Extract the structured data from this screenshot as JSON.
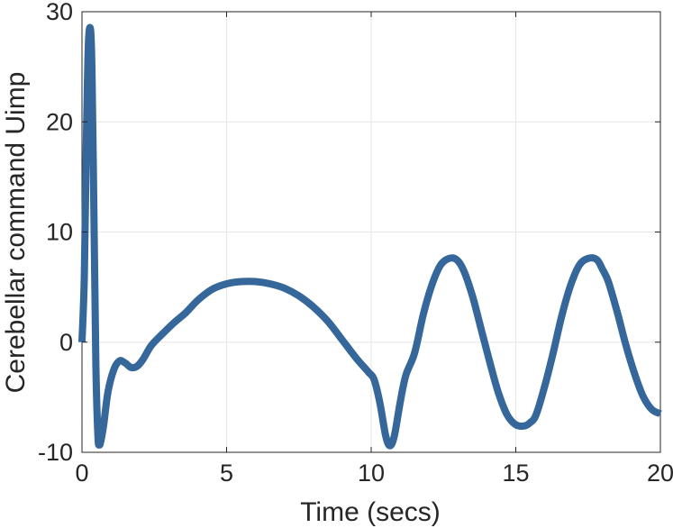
{
  "chart_data": {
    "type": "line",
    "title": "",
    "xlabel": "Time (secs)",
    "ylabel": "Cerebellar command Uimp",
    "xlim": [
      0,
      20
    ],
    "ylim": [
      -10,
      30
    ],
    "xticks": [
      0,
      5,
      10,
      15,
      20
    ],
    "yticks": [
      -10,
      0,
      10,
      20,
      30
    ],
    "xtick_labels": [
      "0",
      "5",
      "10",
      "15",
      "20"
    ],
    "ytick_labels": [
      "-10",
      "0",
      "10",
      "20",
      "30"
    ],
    "grid": true,
    "legend": "none",
    "series": [
      {
        "color": "#35679A",
        "x": [
          0,
          0.08,
          0.15,
          0.22,
          0.3,
          0.35,
          0.42,
          0.48,
          0.55,
          0.6,
          0.65,
          0.75,
          0.9,
          1.1,
          1.3,
          1.5,
          1.7,
          1.9,
          2.1,
          2.4,
          2.8,
          3.2,
          3.6,
          4.0,
          4.5,
          5.0,
          5.5,
          6.0,
          6.5,
          7.0,
          7.5,
          8.0,
          8.5,
          9.0,
          9.5,
          9.9,
          10.1,
          10.3,
          10.5,
          10.65,
          10.8,
          11.0,
          11.2,
          11.5,
          11.8,
          12.1,
          12.4,
          12.7,
          12.95,
          13.2,
          13.5,
          13.8,
          14.1,
          14.4,
          14.7,
          15.0,
          15.3,
          15.5,
          15.7,
          16.0,
          16.3,
          16.6,
          16.9,
          17.2,
          17.5,
          17.8,
          18.0,
          18.2,
          18.5,
          18.8,
          19.1,
          19.4,
          19.7,
          20.0
        ],
        "y": [
          0,
          6,
          18,
          27,
          28.3,
          24,
          10,
          -2,
          -8.5,
          -9.3,
          -9,
          -7.5,
          -4.5,
          -2.5,
          -1.7,
          -1.9,
          -2.3,
          -2.2,
          -1.6,
          -0.3,
          0.8,
          1.8,
          2.7,
          3.8,
          4.8,
          5.3,
          5.5,
          5.5,
          5.3,
          4.9,
          4.2,
          3.2,
          1.9,
          0.2,
          -1.5,
          -2.7,
          -3.4,
          -5.5,
          -8.5,
          -9.4,
          -8.5,
          -5.5,
          -3,
          -1,
          2.5,
          5.2,
          7,
          7.6,
          7.5,
          6.5,
          4.2,
          1.2,
          -1.8,
          -4.6,
          -6.6,
          -7.5,
          -7.6,
          -7.3,
          -6.6,
          -4,
          -0.9,
          2.5,
          5.2,
          7,
          7.6,
          7.5,
          6.6,
          5.5,
          2.8,
          -0.2,
          -2.8,
          -4.9,
          -6.1,
          -6.5
        ]
      }
    ]
  }
}
